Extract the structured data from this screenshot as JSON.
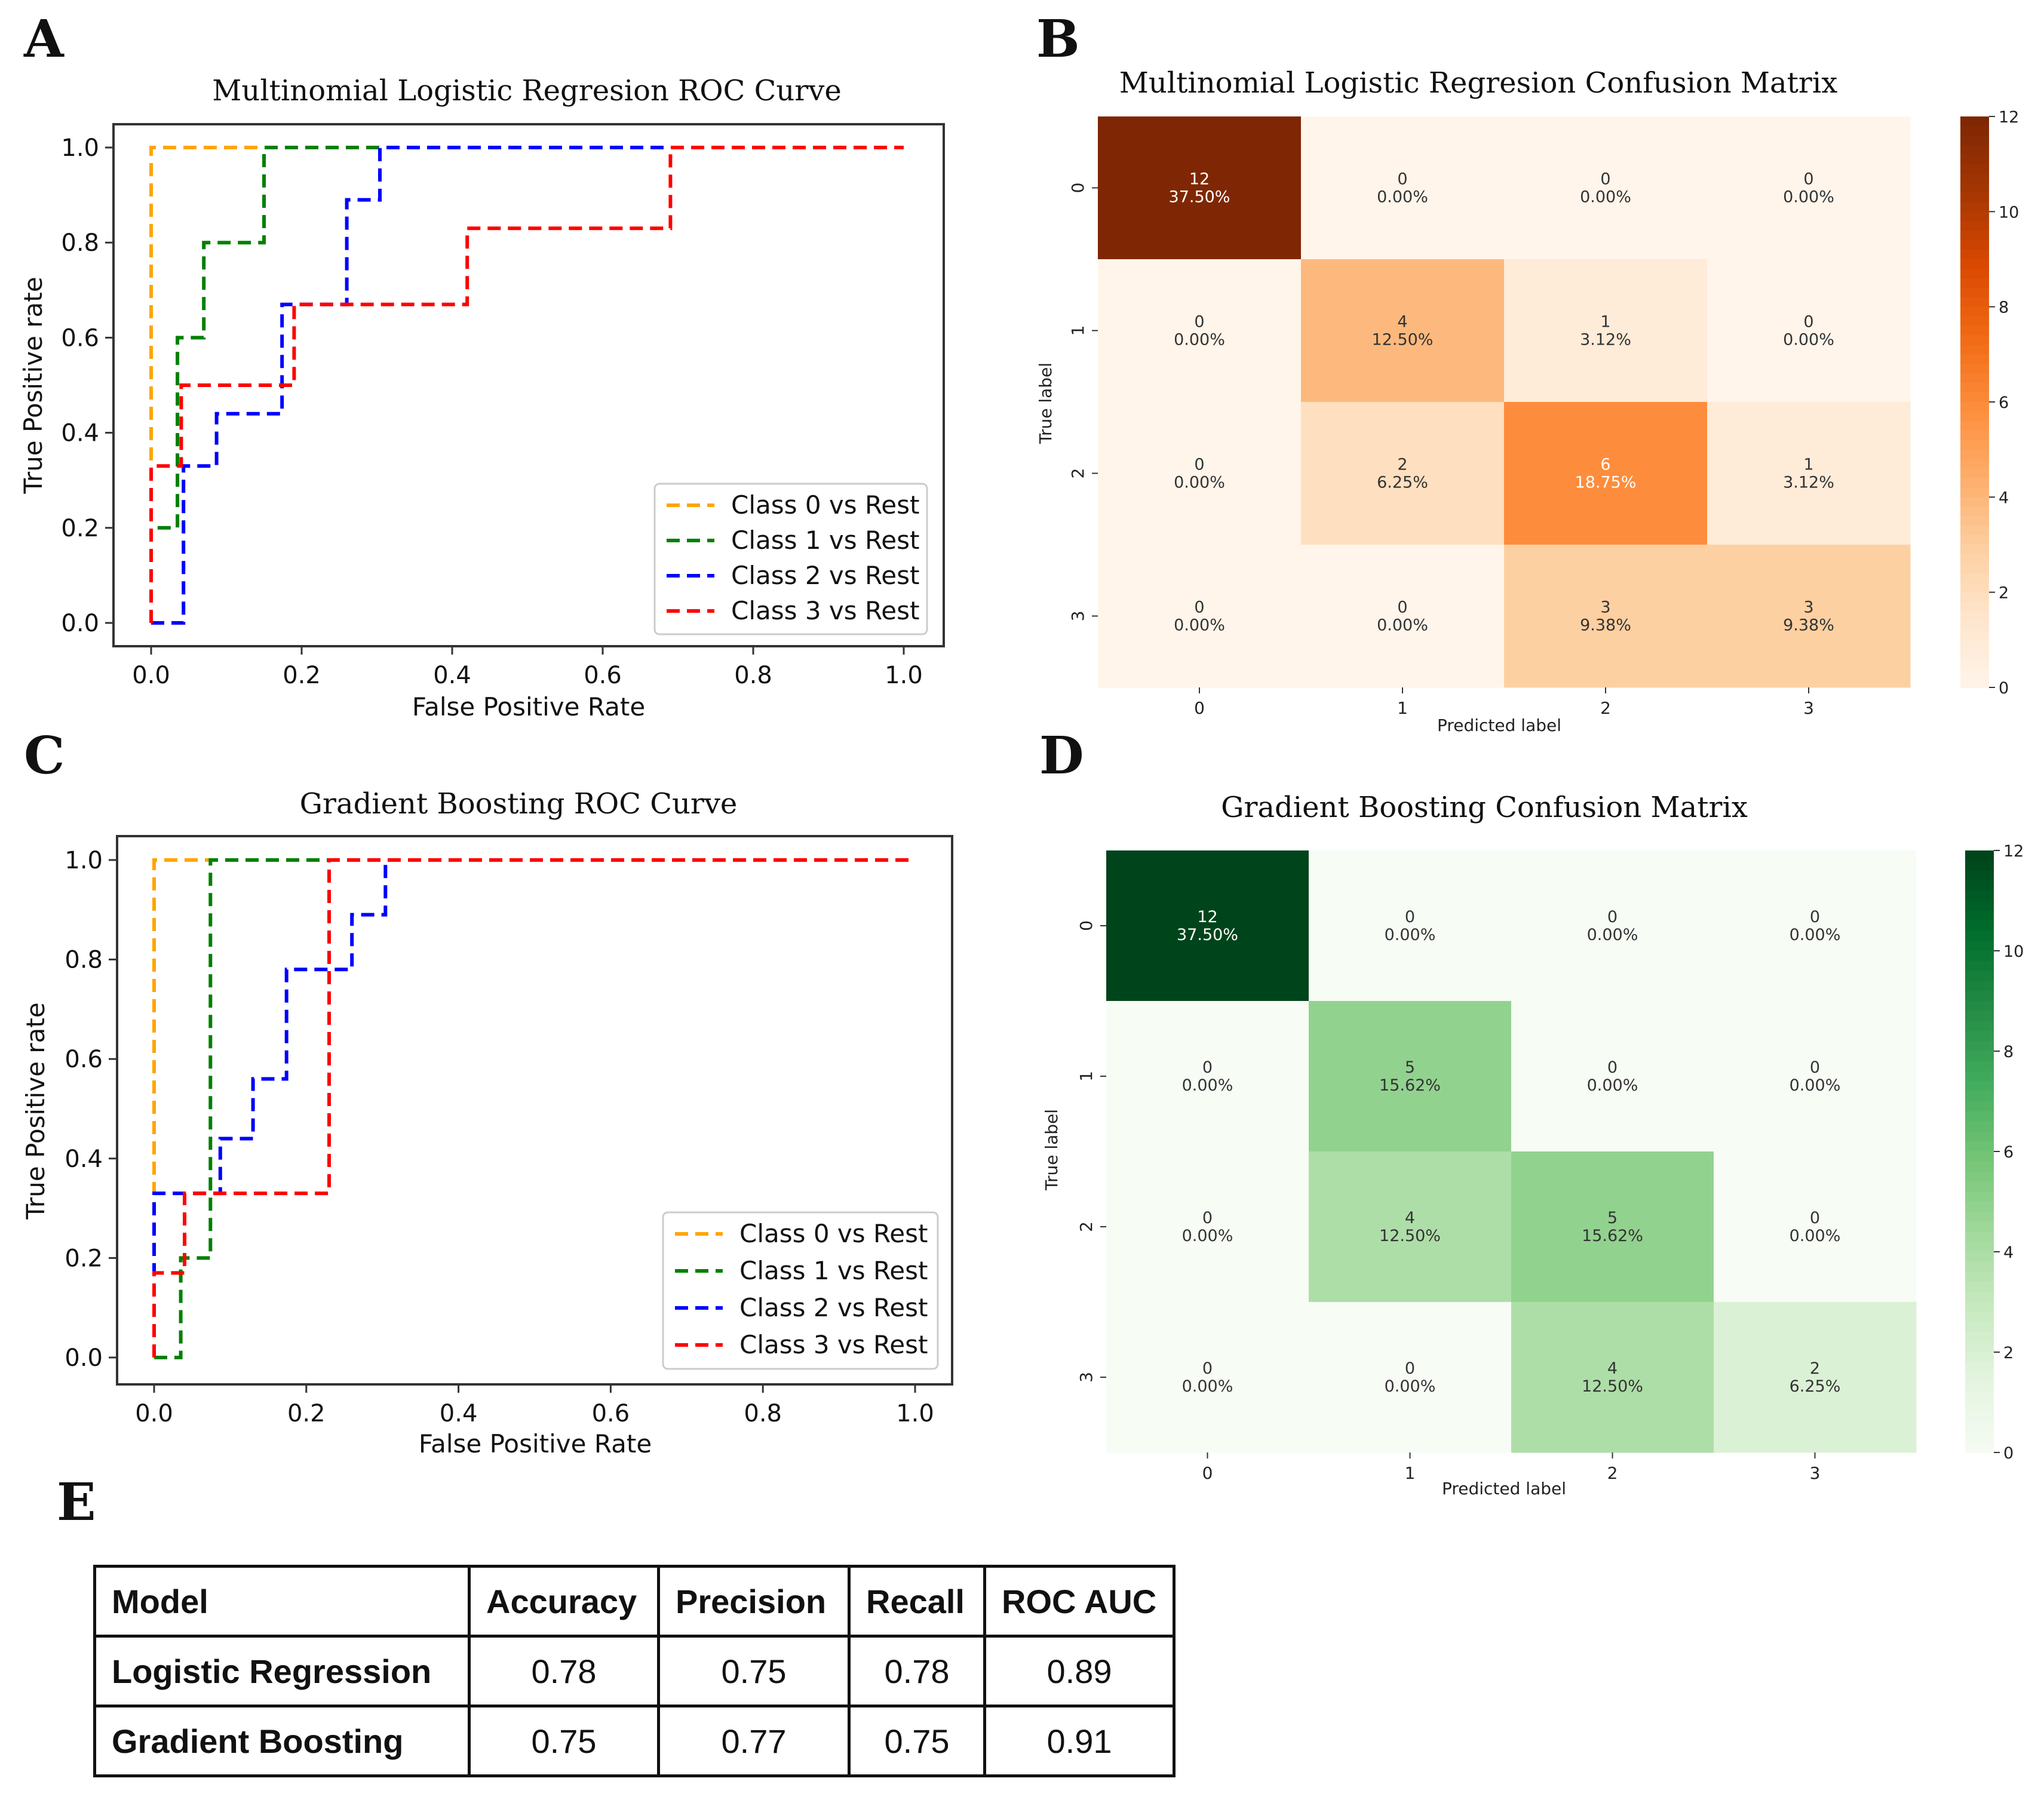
{
  "panels": {
    "A": "A",
    "B": "B",
    "C": "C",
    "D": "D",
    "E": "E"
  },
  "chart_data": [
    {
      "type": "line",
      "panel": "A",
      "title": "Multinomial Logistic Regresion ROC Curve",
      "xlabel": "False Positive Rate",
      "ylabel": "True Positive rate",
      "xlim": [
        0,
        1
      ],
      "ylim": [
        0,
        1
      ],
      "xticks": [
        "0.0",
        "0.2",
        "0.4",
        "0.6",
        "0.8",
        "1.0"
      ],
      "yticks": [
        "0.0",
        "0.2",
        "0.4",
        "0.6",
        "0.8",
        "1.0"
      ],
      "legend_position": "bottom-right",
      "series": [
        {
          "name": "Class 0 vs Rest",
          "color": "#FFA500",
          "x": [
            0,
            0,
            0,
            0,
            1
          ],
          "y": [
            0,
            0.33,
            0.5,
            1.0,
            1.0
          ]
        },
        {
          "name": "Class 1 vs Rest",
          "color": "#008000",
          "x": [
            0,
            0,
            0.035,
            0.035,
            0.035,
            0.07,
            0.07,
            0.15,
            0.15,
            1
          ],
          "y": [
            0,
            0.2,
            0.2,
            0.4,
            0.6,
            0.6,
            0.8,
            0.8,
            1.0,
            1.0
          ]
        },
        {
          "name": "Class 2 vs Rest",
          "color": "#0000FF",
          "x": [
            0,
            0,
            0.043,
            0.043,
            0.087,
            0.087,
            0.174,
            0.174,
            0.26,
            0.26,
            0.304,
            0.304,
            1
          ],
          "y": [
            0,
            0,
            0,
            0.33,
            0.33,
            0.44,
            0.44,
            0.67,
            0.67,
            0.89,
            0.89,
            1.0,
            1.0
          ]
        },
        {
          "name": "Class 3 vs Rest",
          "color": "#FF0000",
          "x": [
            0,
            0,
            0.04,
            0.04,
            0.19,
            0.19,
            0.42,
            0.42,
            0.69,
            0.69,
            1
          ],
          "y": [
            0,
            0.33,
            0.33,
            0.5,
            0.5,
            0.67,
            0.67,
            0.83,
            0.83,
            1.0,
            1.0
          ]
        }
      ]
    },
    {
      "type": "heatmap",
      "panel": "B",
      "title": "Multinomial Logistic Regresion Confusion Matrix",
      "xlabel": "Predicted label",
      "ylabel": "True label",
      "xticks": [
        "0",
        "1",
        "2",
        "3"
      ],
      "yticks": [
        "0",
        "1",
        "2",
        "3"
      ],
      "colormap": "Oranges",
      "cmap_low": "#fff5eb",
      "cmap_high": "#7f2704",
      "vmax": 12,
      "colorbar_ticks": [
        "0",
        "2",
        "4",
        "6",
        "8",
        "10",
        "12"
      ],
      "values": [
        [
          12,
          0,
          0,
          0
        ],
        [
          0,
          4,
          1,
          0
        ],
        [
          0,
          2,
          6,
          1
        ],
        [
          0,
          0,
          3,
          3
        ]
      ],
      "percent": [
        [
          "37.50%",
          "0.00%",
          "0.00%",
          "0.00%"
        ],
        [
          "0.00%",
          "12.50%",
          "3.12%",
          "0.00%"
        ],
        [
          "0.00%",
          "6.25%",
          "18.75%",
          "3.12%"
        ],
        [
          "0.00%",
          "0.00%",
          "9.38%",
          "9.38%"
        ]
      ]
    },
    {
      "type": "line",
      "panel": "C",
      "title": "Gradient Boosting ROC Curve",
      "xlabel": "False Positive Rate",
      "ylabel": "True Positive rate",
      "xlim": [
        0,
        1
      ],
      "ylim": [
        0,
        1
      ],
      "xticks": [
        "0.0",
        "0.2",
        "0.4",
        "0.6",
        "0.8",
        "1.0"
      ],
      "yticks": [
        "0.0",
        "0.2",
        "0.4",
        "0.6",
        "0.8",
        "1.0"
      ],
      "legend_position": "bottom-right",
      "series": [
        {
          "name": "Class 0 vs Rest",
          "color": "#FFA500",
          "x": [
            0,
            0,
            0.07,
            1
          ],
          "y": [
            0,
            1.0,
            1.0,
            1.0
          ]
        },
        {
          "name": "Class 1 vs Rest",
          "color": "#008000",
          "x": [
            0,
            0.035,
            0.035,
            0.074,
            0.074,
            0.23,
            1
          ],
          "y": [
            0,
            0,
            0.2,
            0.2,
            1.0,
            1.0,
            1.0
          ]
        },
        {
          "name": "Class 2 vs Rest",
          "color": "#0000FF",
          "x": [
            0,
            0,
            0.087,
            0.087,
            0.13,
            0.13,
            0.174,
            0.174,
            0.26,
            0.26,
            0.304,
            0.304,
            1
          ],
          "y": [
            0,
            0.33,
            0.33,
            0.44,
            0.44,
            0.56,
            0.56,
            0.78,
            0.78,
            0.89,
            0.89,
            1.0,
            1.0
          ]
        },
        {
          "name": "Class 3 vs Rest",
          "color": "#FF0000",
          "x": [
            0,
            0,
            0.04,
            0.04,
            0.23,
            0.23,
            1
          ],
          "y": [
            0,
            0.17,
            0.17,
            0.33,
            0.33,
            1.0,
            1.0
          ]
        }
      ]
    },
    {
      "type": "heatmap",
      "panel": "D",
      "title": "Gradient Boosting Confusion Matrix",
      "xlabel": "Predicted label",
      "ylabel": "True label",
      "xticks": [
        "0",
        "1",
        "2",
        "3"
      ],
      "yticks": [
        "0",
        "1",
        "2",
        "3"
      ],
      "colormap": "Greens",
      "cmap_low": "#f7fcf5",
      "cmap_high": "#00441b",
      "vmax": 12,
      "colorbar_ticks": [
        "0",
        "2",
        "4",
        "6",
        "8",
        "10",
        "12"
      ],
      "values": [
        [
          12,
          0,
          0,
          0
        ],
        [
          0,
          5,
          0,
          0
        ],
        [
          0,
          4,
          5,
          0
        ],
        [
          0,
          0,
          4,
          2
        ]
      ],
      "percent": [
        [
          "37.50%",
          "0.00%",
          "0.00%",
          "0.00%"
        ],
        [
          "0.00%",
          "15.62%",
          "0.00%",
          "0.00%"
        ],
        [
          "0.00%",
          "12.50%",
          "15.62%",
          "0.00%"
        ],
        [
          "0.00%",
          "0.00%",
          "12.50%",
          "6.25%"
        ]
      ]
    }
  ],
  "table": {
    "headers": [
      "Model",
      "Accuracy",
      "Precision",
      "Recall",
      "ROC AUC"
    ],
    "rows": [
      [
        "Logistic Regression",
        "0.78",
        "0.75",
        "0.78",
        "0.89"
      ],
      [
        "Gradient Boosting",
        "0.75",
        "0.77",
        "0.75",
        "0.91"
      ]
    ]
  }
}
